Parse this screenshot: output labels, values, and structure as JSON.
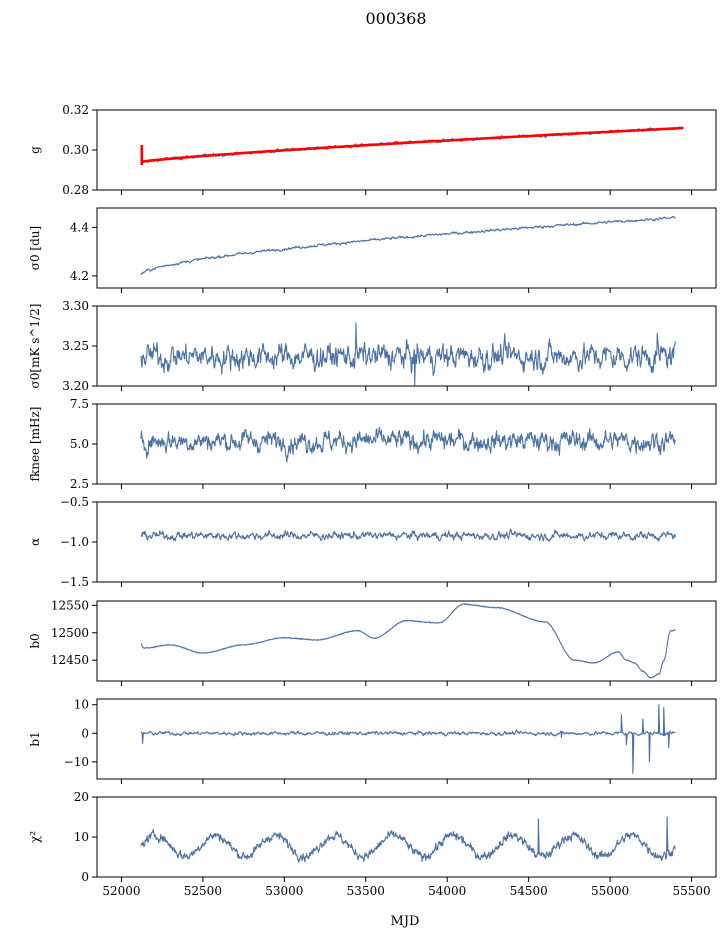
{
  "figure": {
    "title": "000368"
  },
  "chart_data": {
    "type": "line",
    "title": "000368",
    "xlabel": "MJD",
    "x_range": [
      51850,
      55650
    ],
    "x_ticks": [
      52000,
      52500,
      53000,
      53500,
      54000,
      54500,
      55000,
      55500
    ],
    "x_tick_labels": [
      "52000",
      "52500",
      "53000",
      "53500",
      "54000",
      "54500",
      "55000",
      "55500"
    ],
    "x_start": 52120,
    "x_end": 55400,
    "series_color": "#4c72a4",
    "overlay_color": "#ff0000",
    "panels": [
      {
        "ylabel": "g",
        "ylim": [
          0.28,
          0.32
        ],
        "yticks": [
          0.28,
          0.3,
          0.32
        ],
        "ytick_labels": [
          "0.28",
          "0.30",
          "0.32"
        ],
        "kind": "drift",
        "start_value": 0.294,
        "end_value": 0.311,
        "shape_power": 0.8,
        "noise": 0.0006,
        "overlay": "red_fit",
        "x_end": 55450
      },
      {
        "ylabel": "σ0 [du]",
        "ylim": [
          4.15,
          4.48
        ],
        "yticks": [
          4.2,
          4.4
        ],
        "ytick_labels": [
          "4.2",
          "4.4"
        ],
        "kind": "drift",
        "start_value": 4.205,
        "end_value": 4.44,
        "shape_power": 0.6,
        "noise": 0.004
      },
      {
        "ylabel": "σ0[mK s^1/2]",
        "ylim": [
          3.2,
          3.3
        ],
        "yticks": [
          3.2,
          3.25,
          3.3
        ],
        "ytick_labels": [
          "3.20",
          "3.25",
          "3.30"
        ],
        "kind": "noise",
        "mean": 3.237,
        "amplitude": 0.011,
        "spikes": [
          [
            53440,
            3.279
          ],
          [
            53800,
            3.201
          ],
          [
            55290,
            3.266
          ]
        ]
      },
      {
        "ylabel": "fknee [mHz]",
        "ylim": [
          2.5,
          7.5
        ],
        "yticks": [
          2.5,
          5.0,
          7.5
        ],
        "ytick_labels": [
          "2.5",
          "5.0",
          "7.5"
        ],
        "kind": "noise",
        "mean": 5.2,
        "amplitude": 0.45
      },
      {
        "ylabel": "α",
        "ylim": [
          -1.5,
          -0.5
        ],
        "yticks": [
          -1.5,
          -1.0,
          -0.5
        ],
        "ytick_labels": [
          "−1.5",
          "−1.0",
          "−0.5"
        ],
        "kind": "noise",
        "mean": -0.92,
        "amplitude": 0.035
      },
      {
        "ylabel": "b0",
        "ylim": [
          12412,
          12558
        ],
        "yticks": [
          12450,
          12500,
          12550
        ],
        "ytick_labels": [
          "12450",
          "12500",
          "12550"
        ],
        "kind": "keypoints",
        "noise": 0.8,
        "points": [
          [
            52120,
            12480
          ],
          [
            52135,
            12472
          ],
          [
            52300,
            12478
          ],
          [
            52500,
            12463
          ],
          [
            52750,
            12478
          ],
          [
            53000,
            12491
          ],
          [
            53200,
            12487
          ],
          [
            53450,
            12504
          ],
          [
            53550,
            12490
          ],
          [
            53750,
            12522
          ],
          [
            53950,
            12518
          ],
          [
            54100,
            12552
          ],
          [
            54300,
            12546
          ],
          [
            54600,
            12520
          ],
          [
            54780,
            12450
          ],
          [
            54900,
            12445
          ],
          [
            55050,
            12465
          ],
          [
            55100,
            12450
          ],
          [
            55150,
            12445
          ],
          [
            55200,
            12430
          ],
          [
            55250,
            12418
          ],
          [
            55300,
            12425
          ],
          [
            55330,
            12450
          ],
          [
            55370,
            12503
          ],
          [
            55400,
            12505
          ]
        ]
      },
      {
        "ylabel": "b1",
        "ylim": [
          -16,
          12
        ],
        "yticks": [
          -10,
          0,
          10
        ],
        "ytick_labels": [
          "−10",
          "0",
          "10"
        ],
        "kind": "noise",
        "mean": 0.0,
        "amplitude": 0.45,
        "spikes": [
          [
            52130,
            -3.5
          ],
          [
            54700,
            -1.5
          ],
          [
            55070,
            6.5
          ],
          [
            55100,
            -4
          ],
          [
            55140,
            -14
          ],
          [
            55200,
            5
          ],
          [
            55240,
            -10
          ],
          [
            55300,
            10
          ],
          [
            55330,
            9
          ],
          [
            55360,
            -5
          ]
        ]
      },
      {
        "ylabel": "χ²",
        "ylim": [
          0,
          20
        ],
        "yticks": [
          0,
          10,
          20
        ],
        "ytick_labels": [
          "0",
          "10",
          "20"
        ],
        "kind": "periodic",
        "mean": 7.8,
        "amplitude": 2.6,
        "period": 365,
        "noise": 0.9,
        "spikes": [
          [
            54560,
            14.5
          ],
          [
            55350,
            15.0
          ]
        ]
      }
    ]
  }
}
